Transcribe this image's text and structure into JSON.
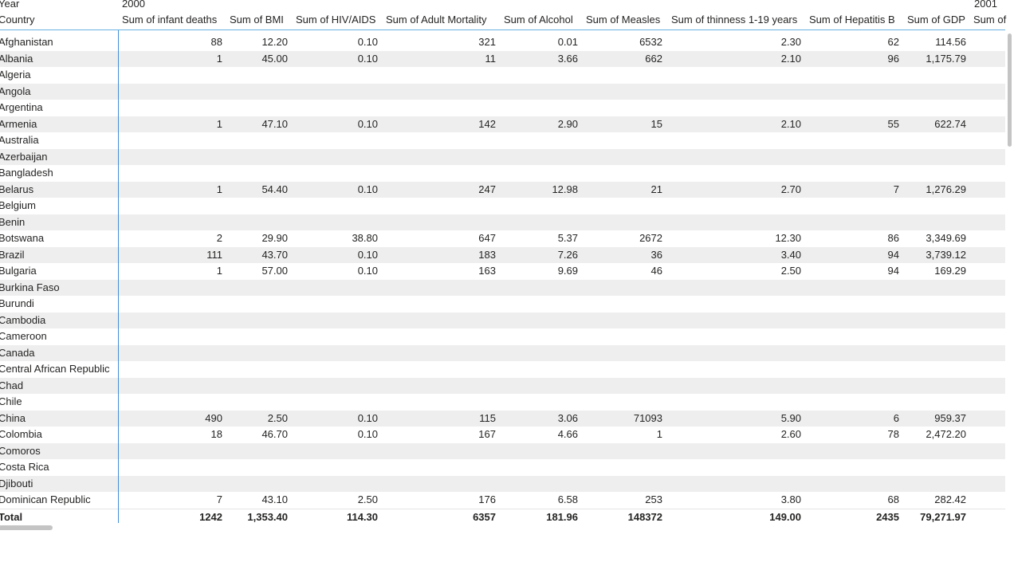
{
  "header": {
    "year_label": "Year",
    "country_label": "Country",
    "year_2000": "2000",
    "year_2001": "2001",
    "columns": [
      "Sum of infant deaths",
      "Sum of BMI",
      "Sum of HIV/AIDS",
      "Sum of Adult Mortality",
      "Sum of Alcohol",
      "Sum of Measles",
      "Sum of thinness 1-19 years",
      "Sum of Hepatitis B",
      "Sum of GDP",
      "Sum of"
    ]
  },
  "rows": [
    {
      "country": "Afghanistan",
      "values": [
        "88",
        "12.20",
        "0.10",
        "321",
        "0.01",
        "6532",
        "2.30",
        "62",
        "114.56"
      ]
    },
    {
      "country": "Albania",
      "values": [
        "1",
        "45.00",
        "0.10",
        "11",
        "3.66",
        "662",
        "2.10",
        "96",
        "1,175.79"
      ]
    },
    {
      "country": "Algeria",
      "values": [
        "",
        "",
        "",
        "",
        "",
        "",
        "",
        "",
        ""
      ]
    },
    {
      "country": "Angola",
      "values": [
        "",
        "",
        "",
        "",
        "",
        "",
        "",
        "",
        ""
      ]
    },
    {
      "country": "Argentina",
      "values": [
        "",
        "",
        "",
        "",
        "",
        "",
        "",
        "",
        ""
      ]
    },
    {
      "country": "Armenia",
      "values": [
        "1",
        "47.10",
        "0.10",
        "142",
        "2.90",
        "15",
        "2.10",
        "55",
        "622.74"
      ]
    },
    {
      "country": "Australia",
      "values": [
        "",
        "",
        "",
        "",
        "",
        "",
        "",
        "",
        ""
      ]
    },
    {
      "country": "Azerbaijan",
      "values": [
        "",
        "",
        "",
        "",
        "",
        "",
        "",
        "",
        ""
      ]
    },
    {
      "country": "Bangladesh",
      "values": [
        "",
        "",
        "",
        "",
        "",
        "",
        "",
        "",
        ""
      ]
    },
    {
      "country": "Belarus",
      "values": [
        "1",
        "54.40",
        "0.10",
        "247",
        "12.98",
        "21",
        "2.70",
        "7",
        "1,276.29"
      ]
    },
    {
      "country": "Belgium",
      "values": [
        "",
        "",
        "",
        "",
        "",
        "",
        "",
        "",
        ""
      ]
    },
    {
      "country": "Benin",
      "values": [
        "",
        "",
        "",
        "",
        "",
        "",
        "",
        "",
        ""
      ]
    },
    {
      "country": "Botswana",
      "values": [
        "2",
        "29.90",
        "38.80",
        "647",
        "5.37",
        "2672",
        "12.30",
        "86",
        "3,349.69"
      ]
    },
    {
      "country": "Brazil",
      "values": [
        "111",
        "43.70",
        "0.10",
        "183",
        "7.26",
        "36",
        "3.40",
        "94",
        "3,739.12"
      ]
    },
    {
      "country": "Bulgaria",
      "values": [
        "1",
        "57.00",
        "0.10",
        "163",
        "9.69",
        "46",
        "2.50",
        "94",
        "169.29"
      ]
    },
    {
      "country": "Burkina Faso",
      "values": [
        "",
        "",
        "",
        "",
        "",
        "",
        "",
        "",
        ""
      ]
    },
    {
      "country": "Burundi",
      "values": [
        "",
        "",
        "",
        "",
        "",
        "",
        "",
        "",
        ""
      ]
    },
    {
      "country": "Cambodia",
      "values": [
        "",
        "",
        "",
        "",
        "",
        "",
        "",
        "",
        ""
      ]
    },
    {
      "country": "Cameroon",
      "values": [
        "",
        "",
        "",
        "",
        "",
        "",
        "",
        "",
        ""
      ]
    },
    {
      "country": "Canada",
      "values": [
        "",
        "",
        "",
        "",
        "",
        "",
        "",
        "",
        ""
      ]
    },
    {
      "country": "Central African Republic",
      "values": [
        "",
        "",
        "",
        "",
        "",
        "",
        "",
        "",
        ""
      ]
    },
    {
      "country": "Chad",
      "values": [
        "",
        "",
        "",
        "",
        "",
        "",
        "",
        "",
        ""
      ]
    },
    {
      "country": "Chile",
      "values": [
        "",
        "",
        "",
        "",
        "",
        "",
        "",
        "",
        ""
      ]
    },
    {
      "country": "China",
      "values": [
        "490",
        "2.50",
        "0.10",
        "115",
        "3.06",
        "71093",
        "5.90",
        "6",
        "959.37"
      ]
    },
    {
      "country": "Colombia",
      "values": [
        "18",
        "46.70",
        "0.10",
        "167",
        "4.66",
        "1",
        "2.60",
        "78",
        "2,472.20"
      ]
    },
    {
      "country": "Comoros",
      "values": [
        "",
        "",
        "",
        "",
        "",
        "",
        "",
        "",
        ""
      ]
    },
    {
      "country": "Costa Rica",
      "values": [
        "",
        "",
        "",
        "",
        "",
        "",
        "",
        "",
        ""
      ]
    },
    {
      "country": "Djibouti",
      "values": [
        "",
        "",
        "",
        "",
        "",
        "",
        "",
        "",
        ""
      ]
    },
    {
      "country": "Dominican Republic",
      "values": [
        "7",
        "43.10",
        "2.50",
        "176",
        "6.58",
        "253",
        "3.80",
        "68",
        "282.42"
      ]
    }
  ],
  "total": {
    "label": "Total",
    "values": [
      "1242",
      "1,353.40",
      "114.30",
      "6357",
      "181.96",
      "148372",
      "149.00",
      "2435",
      "79,271.97"
    ]
  }
}
